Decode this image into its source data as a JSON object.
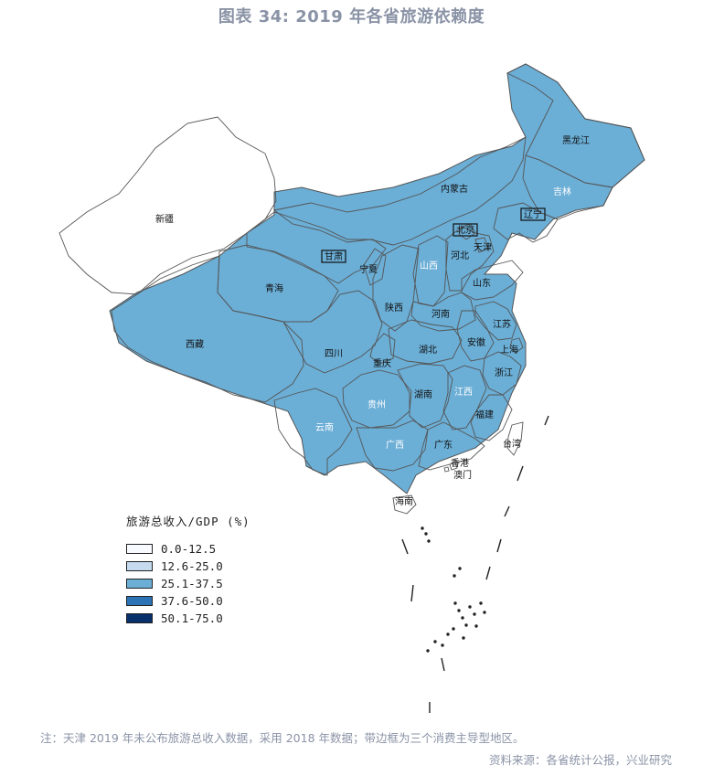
{
  "title": "图表 34: 2019 年各省旅游依赖度",
  "legend": {
    "title": "旅游总收入/GDP (%)",
    "items": [
      {
        "label": "0.0-12.5",
        "color": "#f7fbff"
      },
      {
        "label": "12.6-25.0",
        "color": "#c6dbef"
      },
      {
        "label": "25.1-37.5",
        "color": "#6baed6"
      },
      {
        "label": "37.6-50.0",
        "color": "#2b73b5"
      },
      {
        "label": "50.1-75.0",
        "color": "#08306b"
      }
    ]
  },
  "provinces": [
    {
      "name": "黑龙江",
      "class": 1
    },
    {
      "name": "吉林",
      "class": 3
    },
    {
      "name": "辽宁",
      "class": 2,
      "boxed": true
    },
    {
      "name": "内蒙古",
      "class": 2
    },
    {
      "name": "北京",
      "class": 2,
      "boxed": true
    },
    {
      "name": "天津",
      "class": 1
    },
    {
      "name": "河北",
      "class": 2
    },
    {
      "name": "山西",
      "class": 3
    },
    {
      "name": "山东",
      "class": 0
    },
    {
      "name": "新疆",
      "class": 0
    },
    {
      "name": "甘肃",
      "class": 2,
      "boxed": true
    },
    {
      "name": "宁夏",
      "class": 0
    },
    {
      "name": "青海",
      "class": 1
    },
    {
      "name": "陕西",
      "class": 2
    },
    {
      "name": "河南",
      "class": 0
    },
    {
      "name": "西藏",
      "class": 2
    },
    {
      "name": "四川",
      "class": 2
    },
    {
      "name": "重庆",
      "class": 1
    },
    {
      "name": "湖北",
      "class": 0
    },
    {
      "name": "江苏",
      "class": 1
    },
    {
      "name": "安徽",
      "class": 1
    },
    {
      "name": "上海",
      "class": 1
    },
    {
      "name": "浙江",
      "class": 1
    },
    {
      "name": "贵州",
      "class": 4
    },
    {
      "name": "湖南",
      "class": 1
    },
    {
      "name": "江西",
      "class": 3
    },
    {
      "name": "福建",
      "class": 1
    },
    {
      "name": "云南",
      "class": 3
    },
    {
      "name": "广西",
      "class": 3
    },
    {
      "name": "广东",
      "class": 1
    },
    {
      "name": "台湾",
      "class": null
    },
    {
      "name": "香港",
      "class": null
    },
    {
      "name": "澳门",
      "class": null
    },
    {
      "name": "海南",
      "class": 1
    }
  ],
  "note": "注：天津 2019 年未公布旅游总收入数据，采用 2018 年数据；带边框为三个消费主导型地区。",
  "source": "资料来源：各省统计公报，兴业研究"
}
